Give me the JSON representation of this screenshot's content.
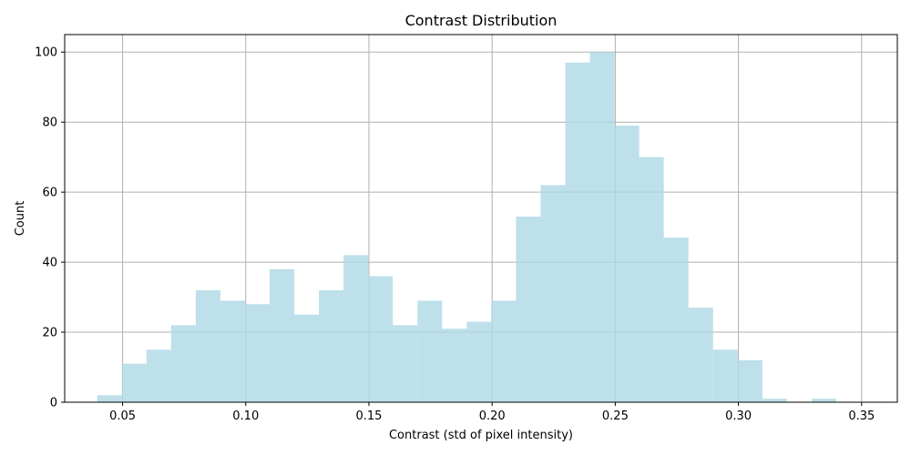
{
  "chart_data": {
    "type": "bar",
    "title": "Contrast Distribution",
    "xlabel": "Contrast (std of pixel intensity)",
    "ylabel": "Count",
    "xlim": [
      0.0265,
      0.3645
    ],
    "ylim": [
      0,
      105
    ],
    "grid": true,
    "bar_color": "#add8e6",
    "bar_alpha": 0.8,
    "bin_start": 0.0397,
    "bin_width": 0.01,
    "values": [
      2,
      11,
      15,
      22,
      32,
      29,
      28,
      38,
      25,
      32,
      42,
      36,
      22,
      29,
      21,
      23,
      29,
      53,
      62,
      97,
      100,
      79,
      70,
      47,
      27,
      15,
      12,
      1,
      0,
      1
    ],
    "xticks": [
      0.05,
      0.1,
      0.15,
      0.2,
      0.25,
      0.3,
      0.35
    ],
    "xtick_labels": [
      "0.05",
      "0.10",
      "0.15",
      "0.20",
      "0.25",
      "0.30",
      "0.35"
    ],
    "yticks": [
      0,
      20,
      40,
      60,
      80,
      100
    ],
    "ytick_labels": [
      "0",
      "20",
      "40",
      "60",
      "80",
      "100"
    ]
  }
}
